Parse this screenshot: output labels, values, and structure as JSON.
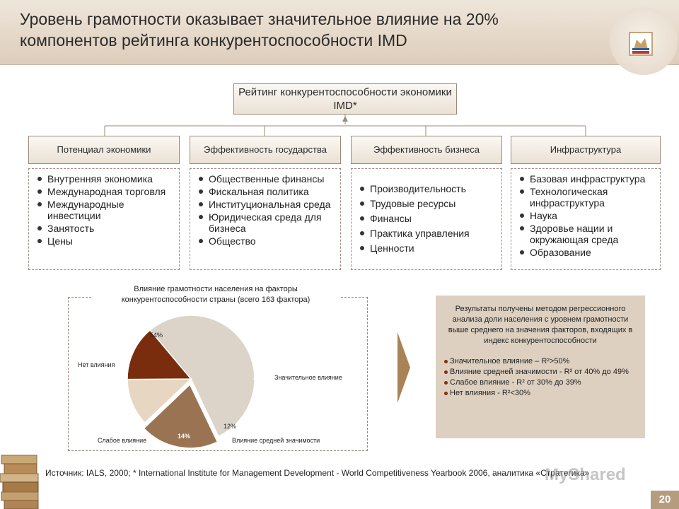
{
  "header": {
    "title": "Уровень грамотности оказывает значительное влияние на 20% компонентов рейтинга конкурентоспособности IMD"
  },
  "top_box": "Рейтинг конкурентоспособности экономики IMD*",
  "categories": [
    {
      "label": "Потенциал экономики",
      "items": [
        "Внутренняя экономика",
        "Международная торговля",
        "Международные инвестиции",
        "Занятость",
        "Цены"
      ]
    },
    {
      "label": "Эффективность государства",
      "items": [
        "Общественные финансы",
        "Фискальная политика",
        "Институциональная среда",
        "Юридическая среда для бизнеса",
        "Общество"
      ]
    },
    {
      "label": "Эффективность бизнеса",
      "items": [
        "Производительность",
        "Трудовые ресурсы",
        "Финансы",
        "Практика управления",
        "Ценности"
      ]
    },
    {
      "label": "Инфраструктура",
      "items": [
        "Базовая инфраструктура",
        "Технологическая инфраструктура",
        "Наука",
        "Здоровье нации и окружающая среда",
        "Образование"
      ]
    }
  ],
  "chart_data": {
    "type": "pie",
    "title": "Влияние грамотности населения на факторы конкурентоспособности страны (всего 163 фактора)",
    "slices": [
      {
        "name": "Нет влияния",
        "value": 54,
        "label": "54%",
        "color": "#dcd3c9"
      },
      {
        "name": "Значительное влияние",
        "value": 20,
        "label": "20%",
        "color": "#9a7352"
      },
      {
        "name": "Влияние средней значимости",
        "value": 12,
        "label": "12%",
        "color": "#e7d6c2"
      },
      {
        "name": "Слабое влияние",
        "value": 14,
        "label": "14%",
        "color": "#7a2d0c"
      }
    ]
  },
  "results": {
    "intro": "Результаты получены методом регрессионного анализа доли населения с уровнем грамотности выше среднего на значения факторов, входящих в индекс конкурентоспособности",
    "items": [
      "Значительное влияние – R²>50%",
      "Влияние средней значимости - R² от 40% до 49%",
      "Слабое влияние - R² от 30% до 39%",
      "Нет влияния - R²<30%"
    ]
  },
  "source": "Источник: IALS, 2000; * International Institute for Management Development - World Competitiveness Yearbook 2006, аналитика «Стратегика»",
  "watermark": "MyShared",
  "page_number": "20",
  "colors": {
    "header_bg": "#e6dacc",
    "accent": "#a98256",
    "results_bg": "#ddd0c0",
    "page_num_bg": "#b59c7e"
  }
}
